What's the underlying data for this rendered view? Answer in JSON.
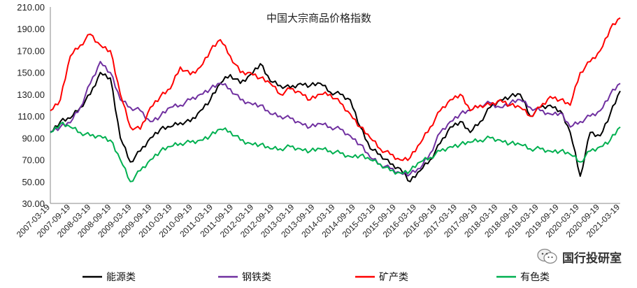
{
  "chart_data": {
    "type": "line",
    "title": "中国大宗商品价格指数",
    "ylim": [
      30,
      210
    ],
    "yticks": [
      "30.00",
      "50.00",
      "70.00",
      "90.00",
      "110.00",
      "130.00",
      "150.00",
      "170.00",
      "190.00",
      "210.00"
    ],
    "xlabels": [
      "2007-03-19",
      "2007-09-19",
      "2008-03-19",
      "2008-09-19",
      "2009-03-19",
      "2009-09-19",
      "2010-03-19",
      "2010-09-19",
      "2011-03-19",
      "2011-09-19",
      "2012-03-19",
      "2012-09-19",
      "2013-03-19",
      "2013-09-19",
      "2014-03-19",
      "2014-09-19",
      "2015-03-19",
      "2015-09-19",
      "2016-03-19",
      "2016-09-19",
      "2017-03-19",
      "2017-09-19",
      "2018-03-19",
      "2018-09-19",
      "2019-03-19",
      "2019-09-19",
      "2020-03-19",
      "2020-09-19",
      "2021-03-19"
    ],
    "x": [
      "2007-03",
      "2007-06",
      "2007-09",
      "2007-12",
      "2008-03",
      "2008-06",
      "2008-09",
      "2008-12",
      "2009-03",
      "2009-06",
      "2009-09",
      "2009-12",
      "2010-03",
      "2010-06",
      "2010-09",
      "2010-12",
      "2011-03",
      "2011-06",
      "2011-09",
      "2011-12",
      "2012-03",
      "2012-06",
      "2012-09",
      "2012-12",
      "2013-03",
      "2013-06",
      "2013-09",
      "2013-12",
      "2014-03",
      "2014-06",
      "2014-09",
      "2014-12",
      "2015-03",
      "2015-06",
      "2015-09",
      "2015-12",
      "2016-03",
      "2016-06",
      "2016-09",
      "2016-12",
      "2017-03",
      "2017-06",
      "2017-09",
      "2017-12",
      "2018-03",
      "2018-06",
      "2018-09",
      "2018-12",
      "2019-03",
      "2019-06",
      "2019-09",
      "2019-12",
      "2020-03",
      "2020-06",
      "2020-09",
      "2020-12",
      "2021-03",
      "2021-05"
    ],
    "series": [
      {
        "name": "能源类",
        "color": "#000000",
        "values": [
          95,
          105,
          108,
          118,
          130,
          150,
          145,
          90,
          68,
          78,
          90,
          98,
          100,
          104,
          105,
          115,
          125,
          140,
          148,
          140,
          148,
          158,
          142,
          138,
          136,
          140,
          138,
          140,
          132,
          130,
          125,
          100,
          80,
          75,
          66,
          62,
          50,
          60,
          70,
          85,
          100,
          105,
          95,
          105,
          118,
          125,
          128,
          130,
          110,
          118,
          120,
          115,
          95,
          55,
          95,
          92,
          112,
          133
        ]
      },
      {
        "name": "钢铁类",
        "color": "#7030A0",
        "values": [
          96,
          100,
          104,
          118,
          140,
          160,
          150,
          125,
          118,
          115,
          105,
          110,
          118,
          120,
          125,
          130,
          135,
          140,
          135,
          125,
          122,
          120,
          112,
          110,
          108,
          104,
          100,
          103,
          100,
          98,
          92,
          84,
          72,
          66,
          62,
          58,
          57,
          62,
          76,
          95,
          105,
          112,
          115,
          120,
          122,
          118,
          122,
          125,
          118,
          115,
          112,
          113,
          100,
          105,
          110,
          115,
          130,
          140
        ]
      },
      {
        "name": "矿产类",
        "color": "#FF0000",
        "values": [
          115,
          125,
          165,
          175,
          185,
          175,
          170,
          130,
          100,
          98,
          118,
          128,
          135,
          155,
          148,
          155,
          170,
          180,
          165,
          150,
          150,
          145,
          140,
          130,
          135,
          132,
          125,
          130,
          130,
          122,
          112,
          100,
          90,
          80,
          75,
          70,
          72,
          85,
          100,
          115,
          125,
          130,
          115,
          120,
          120,
          125,
          120,
          118,
          110,
          118,
          128,
          125,
          120,
          150,
          160,
          170,
          190,
          200
        ]
      },
      {
        "name": "有色类",
        "color": "#00B050",
        "values": [
          95,
          103,
          100,
          95,
          92,
          92,
          88,
          70,
          50,
          60,
          70,
          78,
          82,
          85,
          86,
          88,
          92,
          98,
          96,
          88,
          85,
          84,
          80,
          80,
          82,
          80,
          78,
          80,
          78,
          76,
          73,
          74,
          70,
          66,
          60,
          58,
          60,
          68,
          72,
          78,
          82,
          84,
          86,
          88,
          90,
          88,
          85,
          84,
          80,
          80,
          78,
          78,
          75,
          68,
          78,
          82,
          88,
          100
        ]
      }
    ]
  },
  "watermark": {
    "text": "国行投研室",
    "icon": "wechat-icon"
  }
}
